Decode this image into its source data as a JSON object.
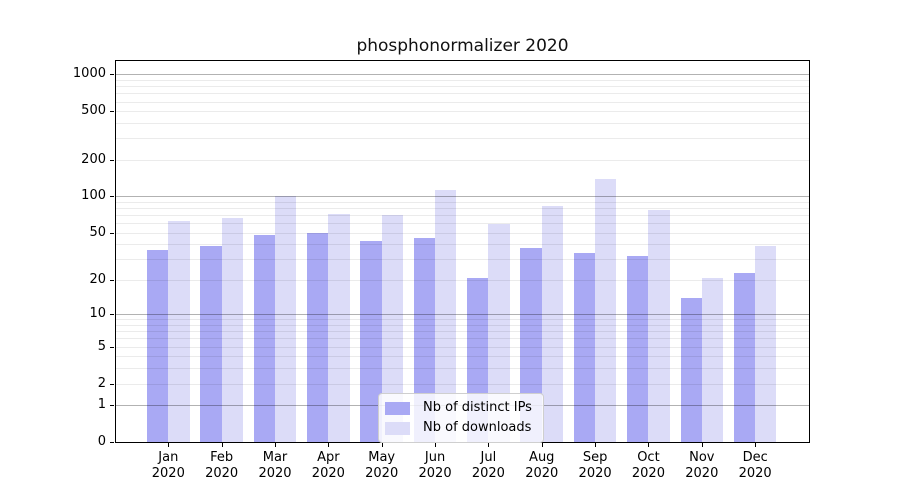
{
  "title": "phosphonormalizer 2020",
  "chart_data": {
    "type": "bar",
    "title": "phosphonormalizer 2020",
    "categories": [
      "Jan 2020",
      "Feb 2020",
      "Mar 2020",
      "Apr 2020",
      "May 2020",
      "Jun 2020",
      "Jul 2020",
      "Aug 2020",
      "Sep 2020",
      "Oct 2020",
      "Nov 2020",
      "Dec 2020"
    ],
    "months": [
      "Jan",
      "Feb",
      "Mar",
      "Apr",
      "May",
      "Jun",
      "Jul",
      "Aug",
      "Sep",
      "Oct",
      "Nov",
      "Dec"
    ],
    "year": "2020",
    "series": [
      {
        "name": "Nb of distinct IPs",
        "color": "#a9a9f4",
        "values": [
          36,
          39,
          48,
          50,
          43,
          45,
          21,
          37,
          34,
          32,
          14,
          23
        ]
      },
      {
        "name": "Nb of downloads",
        "color": "#dcdcf8",
        "values": [
          63,
          67,
          100,
          71,
          70,
          112,
          59,
          84,
          138,
          78,
          21,
          39
        ]
      }
    ],
    "yscale": "log1p",
    "yticks": [
      0,
      1,
      2,
      5,
      10,
      20,
      50,
      100,
      200,
      500,
      1000
    ],
    "ylim": [
      0,
      1286
    ],
    "xlabel": "",
    "ylabel": "",
    "grid": true,
    "legend_position": "lower center"
  },
  "legend": {
    "items": [
      {
        "label": "Nb of distinct IPs",
        "color": "#a9a9f4"
      },
      {
        "label": "Nb of downloads",
        "color": "#dcdcf8"
      }
    ]
  }
}
